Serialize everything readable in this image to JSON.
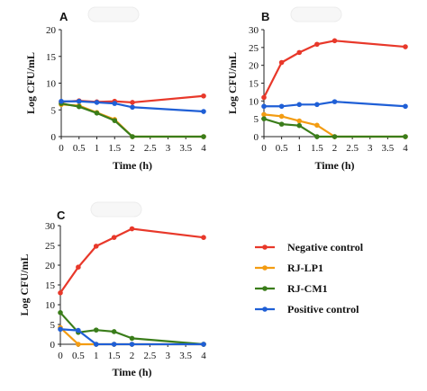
{
  "figure": {
    "legend": {
      "entries": [
        "Negative control",
        "RJ-LP1",
        "RJ-CM1",
        "Positive control"
      ],
      "colors": [
        "#e8382a",
        "#f39c12",
        "#3a7d1a",
        "#1f5fd6"
      ]
    }
  },
  "chart_data": [
    {
      "panel": "A",
      "type": "line",
      "xlabel": "Time (h)",
      "ylabel": "Log CFU/mL",
      "xlim": [
        0,
        4
      ],
      "ylim": [
        0,
        20
      ],
      "xticks": [
        "0",
        "0.5",
        "1",
        "1.5",
        "2",
        "2.5",
        "3",
        "3.5",
        "4"
      ],
      "yticks": [
        "0",
        "5",
        "10",
        "15",
        "20"
      ],
      "series": [
        {
          "name": "Negative control",
          "color": "#e8382a",
          "x": [
            0,
            0.5,
            1,
            1.5,
            2,
            4
          ],
          "y": [
            6.5,
            6.7,
            6.5,
            6.6,
            6.4,
            7.6
          ]
        },
        {
          "name": "RJ-LP1",
          "color": "#f39c12",
          "x": [
            0,
            0.5,
            1,
            1.5,
            2,
            4
          ],
          "y": [
            6.0,
            5.8,
            4.5,
            3.2,
            0,
            0
          ]
        },
        {
          "name": "RJ-CM1",
          "color": "#3a7d1a",
          "x": [
            0,
            0.5,
            1,
            1.5,
            2,
            4
          ],
          "y": [
            6.2,
            5.6,
            4.4,
            3.0,
            0,
            0
          ]
        },
        {
          "name": "Positive control",
          "color": "#1f5fd6",
          "x": [
            0,
            0.5,
            1,
            1.5,
            2,
            4
          ],
          "y": [
            6.6,
            6.6,
            6.4,
            6.2,
            5.5,
            4.7
          ]
        }
      ]
    },
    {
      "panel": "B",
      "type": "line",
      "xlabel": "Time (h)",
      "ylabel": "Log CFU/mL",
      "xlim": [
        0,
        4
      ],
      "ylim": [
        0,
        30
      ],
      "xticks": [
        "0",
        "0.5",
        "1",
        "1.5",
        "2",
        "2.5",
        "3",
        "3.5",
        "4"
      ],
      "yticks": [
        "0",
        "5",
        "10",
        "15",
        "20",
        "25",
        "30"
      ],
      "series": [
        {
          "name": "Negative control",
          "color": "#e8382a",
          "x": [
            0,
            0.5,
            1,
            1.5,
            2,
            4
          ],
          "y": [
            11.0,
            20.8,
            23.6,
            25.9,
            26.9,
            25.2
          ]
        },
        {
          "name": "RJ-LP1",
          "color": "#f39c12",
          "x": [
            0,
            0.5,
            1,
            1.5,
            2,
            4
          ],
          "y": [
            6.2,
            5.7,
            4.4,
            3.2,
            0,
            0
          ]
        },
        {
          "name": "RJ-CM1",
          "color": "#3a7d1a",
          "x": [
            0,
            0.5,
            1,
            1.5,
            2,
            4
          ],
          "y": [
            5.0,
            3.5,
            3.1,
            0,
            0,
            0
          ]
        },
        {
          "name": "Positive control",
          "color": "#1f5fd6",
          "x": [
            0,
            0.5,
            1,
            1.5,
            2,
            4
          ],
          "y": [
            8.5,
            8.5,
            9.0,
            9.0,
            9.8,
            8.5
          ]
        }
      ]
    },
    {
      "panel": "C",
      "type": "line",
      "xlabel": "Time (h)",
      "ylabel": "Log CFU/mL",
      "xlim": [
        0,
        4
      ],
      "ylim": [
        0,
        30
      ],
      "xticks": [
        "0",
        "0.5",
        "1",
        "1.5",
        "2",
        "2.5",
        "3",
        "3.5",
        "4"
      ],
      "yticks": [
        "0",
        "5",
        "10",
        "15",
        "20",
        "25",
        "30"
      ],
      "series": [
        {
          "name": "Negative control",
          "color": "#e8382a",
          "x": [
            0,
            0.5,
            1,
            1.5,
            2,
            4
          ],
          "y": [
            13.0,
            19.5,
            24.8,
            27.0,
            29.2,
            27.0
          ]
        },
        {
          "name": "RJ-LP1",
          "color": "#f39c12",
          "x": [
            0,
            0.5,
            1,
            1.5,
            2,
            4
          ],
          "y": [
            4.2,
            0,
            0,
            0,
            0,
            0
          ]
        },
        {
          "name": "RJ-CM1",
          "color": "#3a7d1a",
          "x": [
            0,
            0.5,
            1,
            1.5,
            2,
            4
          ],
          "y": [
            8.0,
            3.0,
            3.6,
            3.2,
            1.5,
            0
          ]
        },
        {
          "name": "Positive control",
          "color": "#1f5fd6",
          "x": [
            0,
            0.5,
            1,
            1.5,
            2,
            4
          ],
          "y": [
            3.8,
            3.5,
            0,
            0,
            0,
            0
          ]
        }
      ]
    }
  ]
}
